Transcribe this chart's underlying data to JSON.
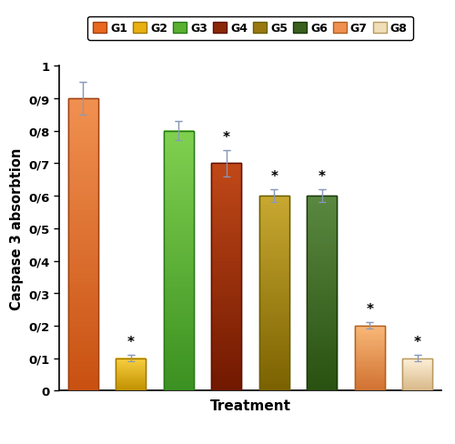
{
  "categories": [
    "G1",
    "G2",
    "G3",
    "G4",
    "G5",
    "G6",
    "G7",
    "G8"
  ],
  "values": [
    0.9,
    0.1,
    0.8,
    0.7,
    0.6,
    0.6,
    0.2,
    0.1
  ],
  "errors": [
    0.05,
    0.01,
    0.03,
    0.04,
    0.02,
    0.02,
    0.01,
    0.01
  ],
  "bar_colors_top": [
    "#F09050",
    "#F8D040",
    "#80D050",
    "#C04818",
    "#C8A830",
    "#5A8840",
    "#F8B878",
    "#FDF0D8"
  ],
  "bar_colors_mid": [
    "#E86820",
    "#E8B010",
    "#5AB030",
    "#8B2808",
    "#9A7810",
    "#3A6020",
    "#F09050",
    "#F0DEB8"
  ],
  "bar_colors_bot": [
    "#C85010",
    "#C09000",
    "#3A9020",
    "#701800",
    "#7A6000",
    "#285010",
    "#D07030",
    "#D8B888"
  ],
  "bar_edge_colors": [
    "#A04010",
    "#A07800",
    "#287818",
    "#601000",
    "#686000",
    "#1A3808",
    "#B06020",
    "#B89860"
  ],
  "star_mask": [
    0,
    1,
    0,
    1,
    1,
    1,
    1,
    1
  ],
  "ylabel": "Caspase 3 absorbtion",
  "xlabel": "Treatment",
  "ylim": [
    0,
    1.0
  ],
  "ytick_labels": [
    "0",
    "0/1",
    "0/2",
    "0/3",
    "0/4",
    "0/5",
    "0/6",
    "0/7",
    "0/8",
    "0/9",
    "1"
  ],
  "legend_labels": [
    "G1",
    "G2",
    "G3",
    "G4",
    "G5",
    "G6",
    "G7",
    "G8"
  ],
  "background_color": "#FFFFFF",
  "figsize": [
    5.0,
    4.89
  ],
  "dpi": 100
}
